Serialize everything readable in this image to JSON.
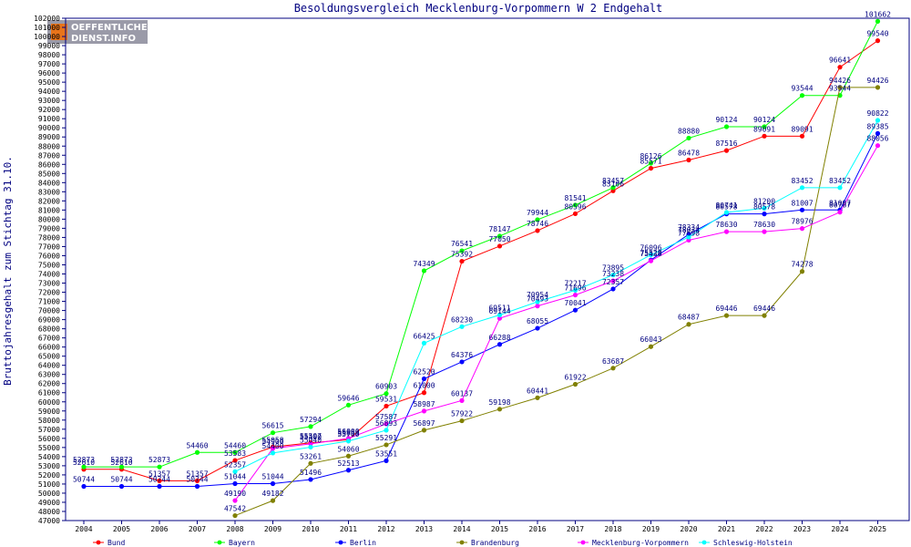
{
  "chart_data": {
    "type": "line",
    "title": "Besoldungsvergleich Mecklenburg-Vorpommern W 2 Endgehalt",
    "ylabel": "Bruttojahresgehalt zum Stichtag 31.10.",
    "xlabel": "",
    "ylim": [
      47000,
      102000
    ],
    "ytick_step": 1000,
    "grid": false,
    "legend_position": "bottom",
    "x": [
      "2004",
      "2005",
      "2006",
      "2007",
      "2008",
      "2009",
      "2010",
      "2011",
      "2012",
      "2013",
      "2014",
      "2015",
      "2016",
      "2017",
      "2018",
      "2019",
      "2020",
      "2021",
      "2022",
      "2023",
      "2024",
      "2025"
    ],
    "series": [
      {
        "name": "Bund",
        "color": "#ff0000",
        "values": [
          52610,
          52610,
          51357,
          51357,
          53583,
          55058,
          55507,
          55853,
          59531,
          61000,
          75392,
          77050,
          78746,
          80596,
          83106,
          85571,
          86478,
          87516,
          89091,
          89091,
          96641,
          99540
        ]
      },
      {
        "name": "Bayern",
        "color": "#00ff00",
        "values": [
          52873,
          52873,
          52873,
          54460,
          54460,
          56615,
          57294,
          59646,
          60903,
          74349,
          76541,
          78147,
          79944,
          81541,
          83457,
          86126,
          88880,
          90124,
          90124,
          93544,
          93544,
          101662
        ]
      },
      {
        "name": "Berlin",
        "color": "#0000ff",
        "values": [
          50744,
          50744,
          50744,
          50744,
          51044,
          51044,
          51496,
          52513,
          53551,
          62520,
          64376,
          66288,
          68055,
          70041,
          72357,
          75528,
          78334,
          80578,
          80578,
          81007,
          81007,
          89385
        ]
      },
      {
        "name": "Brandenburg",
        "color": "#808000",
        "values": [
          null,
          null,
          null,
          null,
          47542,
          49182,
          53261,
          54060,
          55291,
          56897,
          57922,
          59198,
          60441,
          61922,
          63687,
          66043,
          68487,
          69446,
          69446,
          74278,
          94426,
          94426
        ]
      },
      {
        "name": "Mecklenburg-Vorpommern",
        "color": "#ff00ff",
        "values": [
          null,
          null,
          null,
          null,
          49190,
          54900,
          55400,
          56000,
          57587,
          58987,
          60137,
          69144,
          70493,
          71696,
          73238,
          75438,
          77698,
          78630,
          78630,
          78976,
          80767,
          88056
        ]
      },
      {
        "name": "Schleswig-Holstein",
        "color": "#00ffff",
        "values": [
          null,
          null,
          null,
          null,
          52357,
          54400,
          55040,
          55700,
          56893,
          66425,
          68230,
          69511,
          70954,
          72217,
          73895,
          76096,
          78034,
          80741,
          81200,
          83452,
          83452,
          90822
        ]
      }
    ]
  },
  "logo": {
    "line1": "OEFFENTLICHER",
    "line2": "DIENST.INFO"
  }
}
